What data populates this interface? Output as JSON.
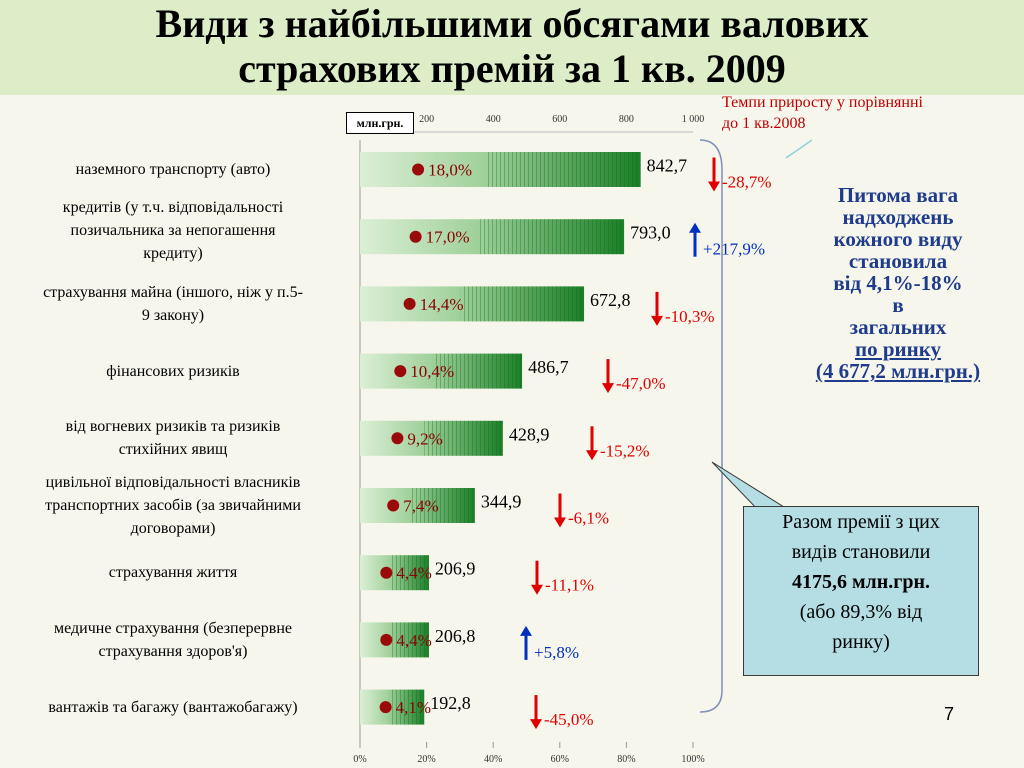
{
  "title": {
    "line1": "Види з найбільшими обсягами валових",
    "line2": "страхових премій за 1 кв. 2009"
  },
  "growth_note": {
    "line1": "Темпи приросту у порівнянні",
    "line2": "до 1 кв.2008"
  },
  "unit_label": "млн.грн.",
  "share_note": {
    "line1": "Питома вага",
    "line2": "надходжень",
    "line3": "кожного виду",
    "line4": "становила",
    "line5": "від 4,1%-18%",
    "line6": "в",
    "line7": "загальних",
    "line8": "по ринку",
    "line9": "(4 677,2 млн.грн.)"
  },
  "total_box": {
    "line1": "Разом премії з цих",
    "line2": "видів становили",
    "line3": "4175,6 млн.грн.",
    "line4": "(або 89,3% від",
    "line5": "ринку)"
  },
  "page_number": "7",
  "colors": {
    "title_bg": "#dcedc8",
    "bar_light": "#cfe8c7",
    "bar_dark": "#1f8a2a",
    "growth_up": "#0030c0",
    "growth_down": "#e00000",
    "share_text": "#1f3b8c"
  },
  "chart_data": {
    "type": "bar",
    "orientation": "horizontal",
    "top_axis": {
      "min": 0,
      "max": 1000,
      "ticks": [
        "200",
        "400",
        "600",
        "800",
        "1 000"
      ]
    },
    "bottom_axis": {
      "min": 0,
      "max": 100,
      "ticks": [
        "0%",
        "20%",
        "40%",
        "60%",
        "80%",
        "100%"
      ]
    },
    "categories": [
      [
        "наземного транспорту (авто)"
      ],
      [
        "кредитів (у т.ч. відповідальності",
        "позичальника за непогашення",
        "кредиту)"
      ],
      [
        "страхування майна (іншого, ніж у п.5-",
        "9 закону)"
      ],
      [
        "фінансових ризиків"
      ],
      [
        "від вогневих ризиків та ризиків",
        "стихійних явищ"
      ],
      [
        "цивільної відповідальності власників",
        "транспортних засобів (за звичайними",
        "договорами)"
      ],
      [
        "страхування життя"
      ],
      [
        "медичне страхування (безперервне",
        "страхування здоров'я)"
      ],
      [
        "вантажів та багажу (вантажобагажу)"
      ]
    ],
    "values": [
      842.7,
      793.0,
      672.8,
      486.7,
      428.9,
      344.9,
      206.9,
      206.8,
      192.8
    ],
    "value_labels": [
      "842,7",
      "793,0",
      "672,8",
      "486,7",
      "428,9",
      "344,9",
      "206,9",
      "206,8",
      "192,8"
    ],
    "shares": [
      "18,0%",
      "17,0%",
      "14,4%",
      "10,4%",
      "9,2%",
      "7,4%",
      "4,4%",
      "4,4%",
      "4,1%"
    ],
    "growth": [
      "-28,7%",
      "+217,9%",
      "-10,3%",
      "-47,0%",
      "-15,2%",
      "-6,1%",
      "-11,1%",
      "+5,8%",
      "-45,0%"
    ],
    "growth_direction": [
      "down",
      "up",
      "down",
      "down",
      "down",
      "down",
      "down",
      "up",
      "down"
    ]
  }
}
